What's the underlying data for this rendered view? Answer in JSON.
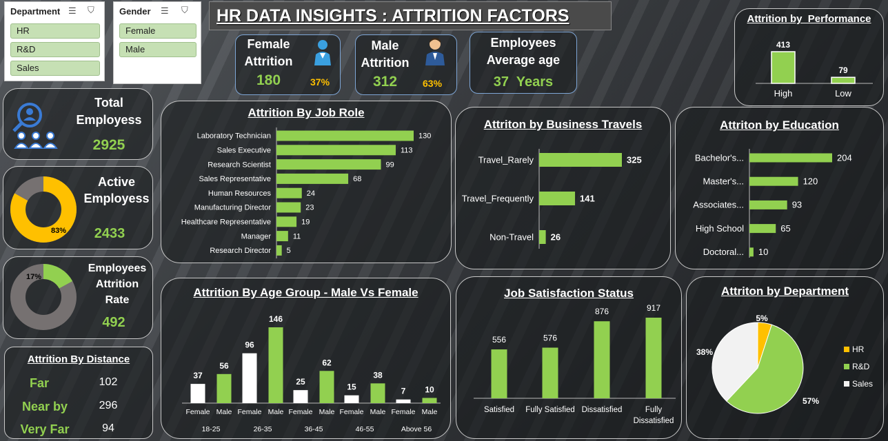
{
  "title": "HR DATA INSIGHTS : ATTRITION FACTORS",
  "slicers": {
    "department": {
      "label": "Department",
      "items": [
        "HR",
        "R&D",
        "Sales"
      ]
    },
    "gender": {
      "label": "Gender",
      "items": [
        "Female",
        "Male"
      ]
    }
  },
  "kpis": {
    "female": {
      "label1": "Female",
      "label2": "Attrition",
      "value": "180",
      "pct": "37%"
    },
    "male": {
      "label1": "Male",
      "label2": "Attrition",
      "value": "312",
      "pct": "63%"
    },
    "age": {
      "label1": "Employees",
      "label2": "Average age",
      "value": "37  Years"
    },
    "total": {
      "label1": "Total",
      "label2": "Employess",
      "value": "2925"
    },
    "active": {
      "label1": "Active",
      "label2": "Employess",
      "value": "2433",
      "pct_label": "83%"
    },
    "attrition_rate": {
      "label1": "Employees",
      "label2": "Attrition",
      "label3": "Rate",
      "value": "492",
      "pct_label": "17%"
    }
  },
  "distance": {
    "title": "Attrition By Distance",
    "rows": [
      {
        "label": "Far",
        "value": "102"
      },
      {
        "label": "Near by",
        "value": "296"
      },
      {
        "label": "Very Far",
        "value": "94"
      }
    ]
  },
  "chart_data": [
    {
      "id": "performance",
      "type": "bar",
      "title": "Attrition by  Performance",
      "categories": [
        "High",
        "Low"
      ],
      "values": [
        413,
        79
      ]
    },
    {
      "id": "job_role",
      "type": "bar",
      "orientation": "horizontal",
      "title": "Attrition By Job Role",
      "categories": [
        "Laboratory Technician",
        "Sales Executive",
        "Research Scientist",
        "Sales Representative",
        "Human Resources",
        "Manufacturing Director",
        "Healthcare Representative",
        "Manager",
        "Research Director"
      ],
      "values": [
        130,
        113,
        99,
        68,
        24,
        23,
        19,
        11,
        5
      ]
    },
    {
      "id": "travel",
      "type": "bar",
      "orientation": "horizontal",
      "title": "Attriton by Business Travels",
      "categories": [
        "Travel_Rarely",
        "Travel_Frequently",
        "Non-Travel"
      ],
      "values": [
        325,
        141,
        26
      ]
    },
    {
      "id": "education",
      "type": "bar",
      "orientation": "horizontal",
      "title": "Attriton by Education",
      "categories": [
        "Bachelor's...",
        "Master's...",
        "Associates...",
        "High School",
        "Doctoral..."
      ],
      "values": [
        204,
        120,
        93,
        65,
        10
      ]
    },
    {
      "id": "age_group",
      "type": "bar",
      "title": "Attrition By Age Group - Male Vs Female",
      "categories": [
        "18-25",
        "26-35",
        "36-45",
        "46-55",
        "Above 56"
      ],
      "series": [
        {
          "name": "Female",
          "values": [
            37,
            96,
            25,
            15,
            7
          ],
          "color": "#ffffff"
        },
        {
          "name": "Male",
          "values": [
            56,
            146,
            62,
            38,
            10
          ],
          "color": "#92d050"
        }
      ]
    },
    {
      "id": "satisfaction",
      "type": "bar",
      "title": "Job Satisfaction Status",
      "categories": [
        "Satisfied",
        "Fully Satisfied",
        "Dissatisfied",
        "Fully Dissatisfied"
      ],
      "values": [
        556,
        576,
        876,
        917
      ]
    },
    {
      "id": "department",
      "type": "pie",
      "title": "Attriton by Department",
      "categories": [
        "HR",
        "R&D",
        "Sales"
      ],
      "values": [
        5,
        57,
        38
      ],
      "labels": [
        "5%",
        "57%",
        "38%"
      ],
      "colors": [
        "#ffc000",
        "#92d050",
        "#f2f2f2"
      ],
      "legend": "right"
    }
  ],
  "colors": {
    "accent": "#92d050",
    "highlight": "#ffc000",
    "donut_grey": "#767171"
  }
}
